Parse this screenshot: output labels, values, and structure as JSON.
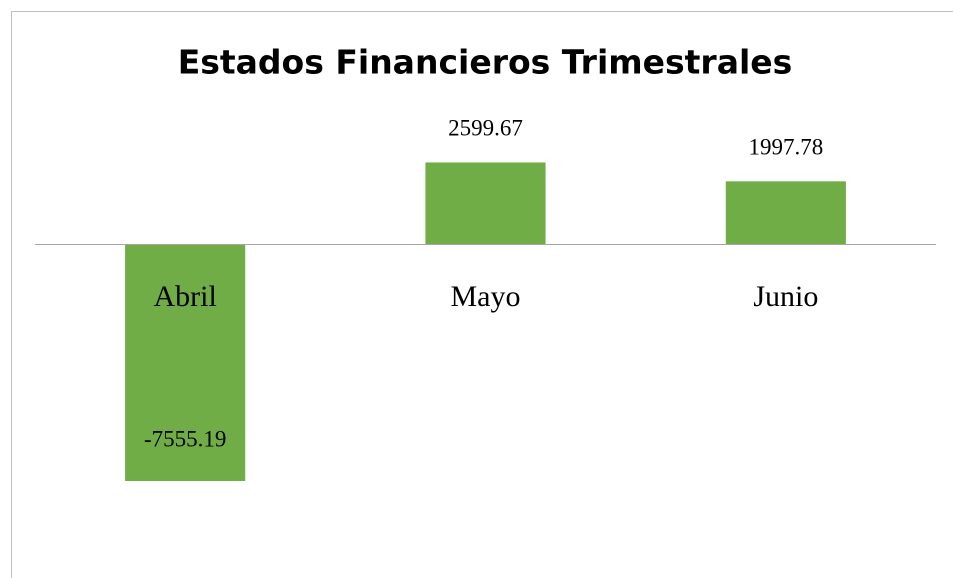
{
  "chart_data": {
    "type": "bar",
    "title": "Estados Financieros Trimestrales",
    "categories": [
      "Abril",
      "Mayo",
      "Junio"
    ],
    "values": [
      -7555.19,
      2599.67,
      1997.78
    ],
    "color": "#70ad47"
  }
}
